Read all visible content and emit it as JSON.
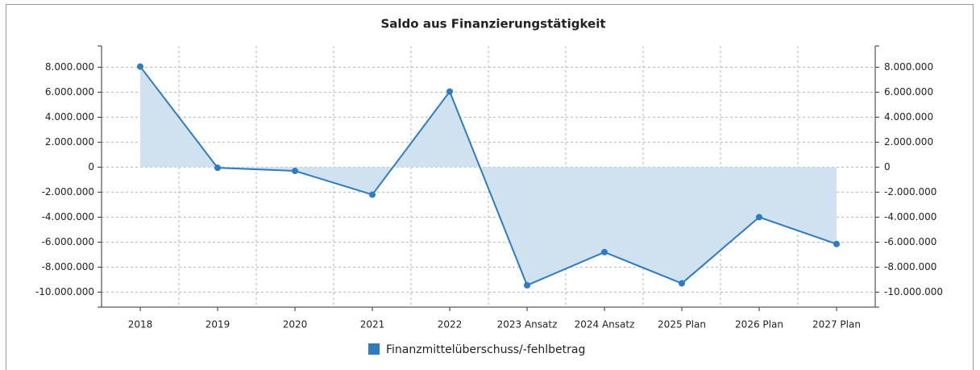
{
  "chart_data": {
    "type": "area-line",
    "title": "Saldo aus Finanzierungstätigkeit",
    "categories": [
      "2018",
      "2019",
      "2020",
      "2021",
      "2022",
      "2023 Ansatz",
      "2024 Ansatz",
      "2025 Plan",
      "2026 Plan",
      "2027 Plan"
    ],
    "series": [
      {
        "name": "Finanzmittelüberschuss/-fehlbetrag",
        "color": "#2f7bbf",
        "area_color": "#d0e1f0",
        "values": [
          8050000,
          -50000,
          -300000,
          -2200000,
          6050000,
          -9450000,
          -6800000,
          -9300000,
          -4000000,
          -6150000
        ]
      }
    ],
    "ylim": [
      -11200000,
      9700000
    ],
    "yticks": [
      {
        "value": -10000000,
        "label": "-10.000.000"
      },
      {
        "value": -8000000,
        "label": "-8.000.000"
      },
      {
        "value": -6000000,
        "label": "-6.000.000"
      },
      {
        "value": -4000000,
        "label": "-4.000.000"
      },
      {
        "value": -2000000,
        "label": "-2.000.000"
      },
      0,
      {
        "value": 2000000,
        "label": "2.000.000"
      },
      {
        "value": 4000000,
        "label": "4.000.000"
      },
      {
        "value": 6000000,
        "label": "6.000.000"
      },
      {
        "value": 8000000,
        "label": "8.000.000"
      }
    ],
    "y2lim": [
      -11200000,
      9700000
    ],
    "y2ticks": [
      {
        "value": -10000000,
        "label": "-10.000.000"
      },
      {
        "value": -8000000,
        "label": "-8.000.000"
      },
      {
        "value": -6000000,
        "label": "-6.000.000"
      },
      {
        "value": -4000000,
        "label": "-4.000.000"
      },
      {
        "value": -2000000,
        "label": "-2.000.000"
      },
      0,
      {
        "value": 2000000,
        "label": "2.000.000"
      },
      {
        "value": 4000000,
        "label": "4.000.000"
      },
      {
        "value": 6000000,
        "label": "6.000.000"
      },
      {
        "value": 8000000,
        "label": "8.000.000"
      }
    ],
    "grid": true,
    "legend": "bottom"
  }
}
